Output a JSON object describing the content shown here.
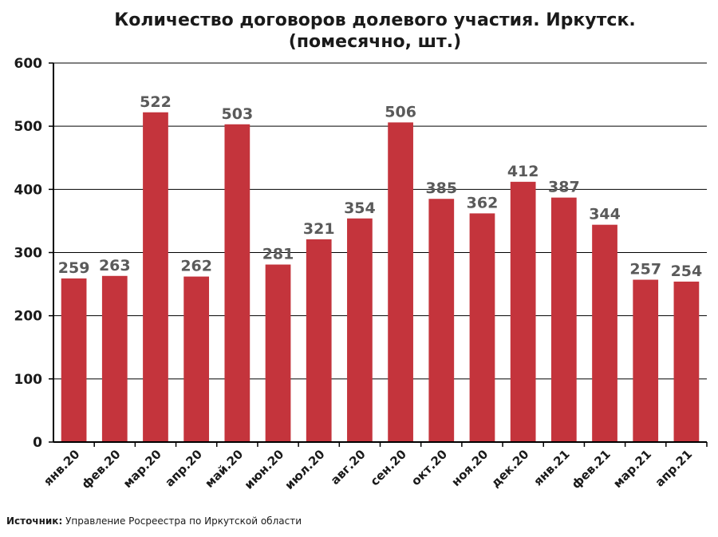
{
  "chart_data": {
    "type": "bar",
    "title_lines": [
      "Количество договоров долевого участия. Иркутск.",
      "(помесячно, шт.)"
    ],
    "categories": [
      "янв.20",
      "фев.20",
      "мар.20",
      "апр.20",
      "май.20",
      "июн.20",
      "июл.20",
      "авг.20",
      "сен.20",
      "окт.20",
      "ноя.20",
      "дек.20",
      "янв.21",
      "фев.21",
      "мар.21",
      "апр.21"
    ],
    "values": [
      259,
      263,
      522,
      262,
      503,
      281,
      321,
      354,
      506,
      385,
      362,
      412,
      387,
      344,
      257,
      254
    ],
    "yticks": [
      0,
      100,
      200,
      300,
      400,
      500,
      600
    ],
    "ylim": [
      0,
      600
    ],
    "grid": true,
    "bar_color": "#c4343c",
    "label_color": "#5a5a5a"
  },
  "source": {
    "label": "Источник:",
    "text": "Управление Росреестра по Иркутской области"
  }
}
